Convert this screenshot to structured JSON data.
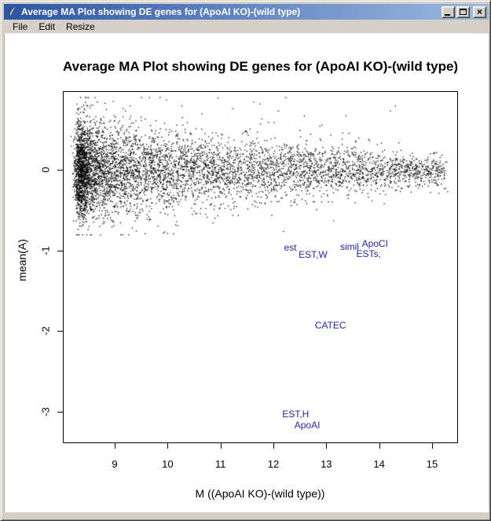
{
  "window": {
    "title": "Average MA Plot showing DE genes for (ApoAI KO)-(wild type)",
    "icon": "r-quill-icon",
    "controls": {
      "minimize": "minimize",
      "maximize": "maximize",
      "close": "close"
    }
  },
  "menu": {
    "items": [
      {
        "label": "File"
      },
      {
        "label": "Edit"
      },
      {
        "label": "Resize"
      }
    ]
  },
  "chart_data": {
    "type": "scatter",
    "title": "Average MA Plot showing DE genes for (ApoAI KO)-(wild type)",
    "xlabel": "M ((ApoAI KO)-(wild type))",
    "ylabel": "mean(A)",
    "xlim": [
      8.0,
      15.5
    ],
    "ylim": [
      -3.4,
      1.0
    ],
    "x_ticks": [
      9,
      10,
      11,
      12,
      13,
      14,
      15
    ],
    "y_ticks": [
      0,
      -1,
      -2,
      -3
    ],
    "grid": false,
    "legend": "none",
    "point_color": "#000000",
    "de_label_color": "#2525b4",
    "de_gene_labels": [
      {
        "text": "est",
        "x": 12.32,
        "y": -0.96
      },
      {
        "text": "EST,W",
        "x": 12.75,
        "y": -1.05
      },
      {
        "text": "simil",
        "x": 13.44,
        "y": -0.95
      },
      {
        "text": "ApoCI",
        "x": 13.92,
        "y": -0.92
      },
      {
        "text": "ESTs,",
        "x": 13.8,
        "y": -1.04
      },
      {
        "text": "CATEC",
        "x": 13.08,
        "y": -1.93
      },
      {
        "text": "EST,H",
        "x": 12.42,
        "y": -3.03
      },
      {
        "text": "ApoAI",
        "x": 12.64,
        "y": -3.16
      }
    ],
    "point_cloud": {
      "description": "~6000 genes, dense band centered at mean(A)=0, spread shrinking from sd 0.30 at M=8.3 to sd 0.11 at M=15, sparse outliers up to +0.9 and down to -0.8",
      "n": 6000,
      "seed": 7,
      "x_min": 8.32,
      "x_span": 6.9,
      "x_power": 2.35,
      "x_jitter": 0.05,
      "sigma_at_xmin": 0.295,
      "sigma_slope": -0.03,
      "sigma_min": 0.105,
      "outlier_up_prob": 0.013,
      "outlier_down_prob": 0.006,
      "y_clip": [
        -0.8,
        0.9
      ]
    }
  }
}
